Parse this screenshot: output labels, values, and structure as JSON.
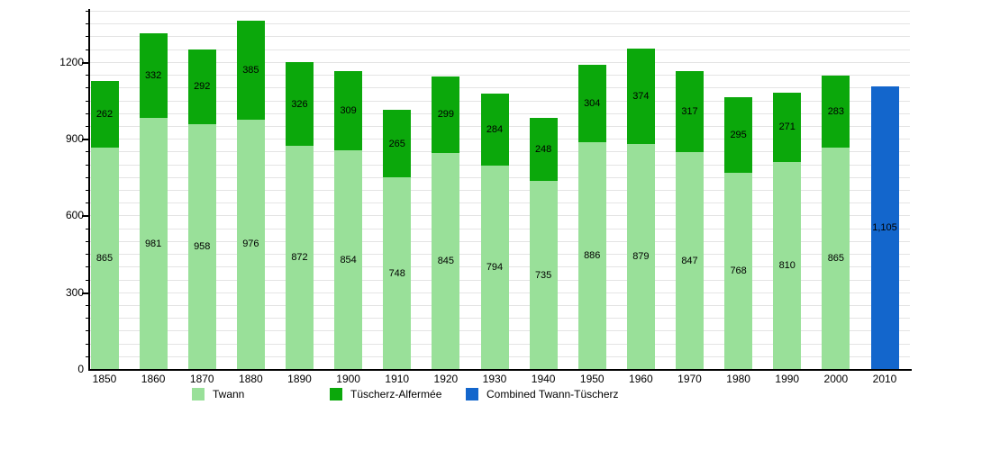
{
  "chart_data": {
    "type": "bar",
    "stacked": true,
    "title": "",
    "categories": [
      "1850",
      "1860",
      "1870",
      "1880",
      "1890",
      "1900",
      "1910",
      "1920",
      "1930",
      "1940",
      "1950",
      "1960",
      "1970",
      "1980",
      "1990",
      "2000",
      "2010"
    ],
    "series": [
      {
        "name": "Twann",
        "color": "#99e099",
        "values": [
          865,
          981,
          958,
          976,
          872,
          854,
          748,
          845,
          794,
          735,
          886,
          879,
          847,
          768,
          810,
          865,
          null
        ]
      },
      {
        "name": "Tüscherz-Alfermée",
        "color": "#0ba80b",
        "values": [
          262,
          332,
          292,
          385,
          326,
          309,
          265,
          299,
          284,
          248,
          304,
          374,
          317,
          295,
          271,
          283,
          null
        ]
      },
      {
        "name": "Combined Twann-Tüscherz",
        "color": "#1366cc",
        "values": [
          null,
          null,
          null,
          null,
          null,
          null,
          null,
          null,
          null,
          null,
          null,
          null,
          null,
          null,
          null,
          null,
          1105
        ]
      }
    ],
    "value_labels_shown": true,
    "combined_2010_label": "1,105",
    "y_ticks": [
      "0",
      "300",
      "600",
      "900",
      "1200"
    ],
    "ylim": [
      0,
      1400
    ],
    "grid_step": 50,
    "grid_on": true,
    "legend_position": "bottom"
  },
  "legend": {
    "items": [
      "Twann",
      "Tüscherz-Alfermée",
      "Combined Twann-Tüscherz"
    ]
  }
}
